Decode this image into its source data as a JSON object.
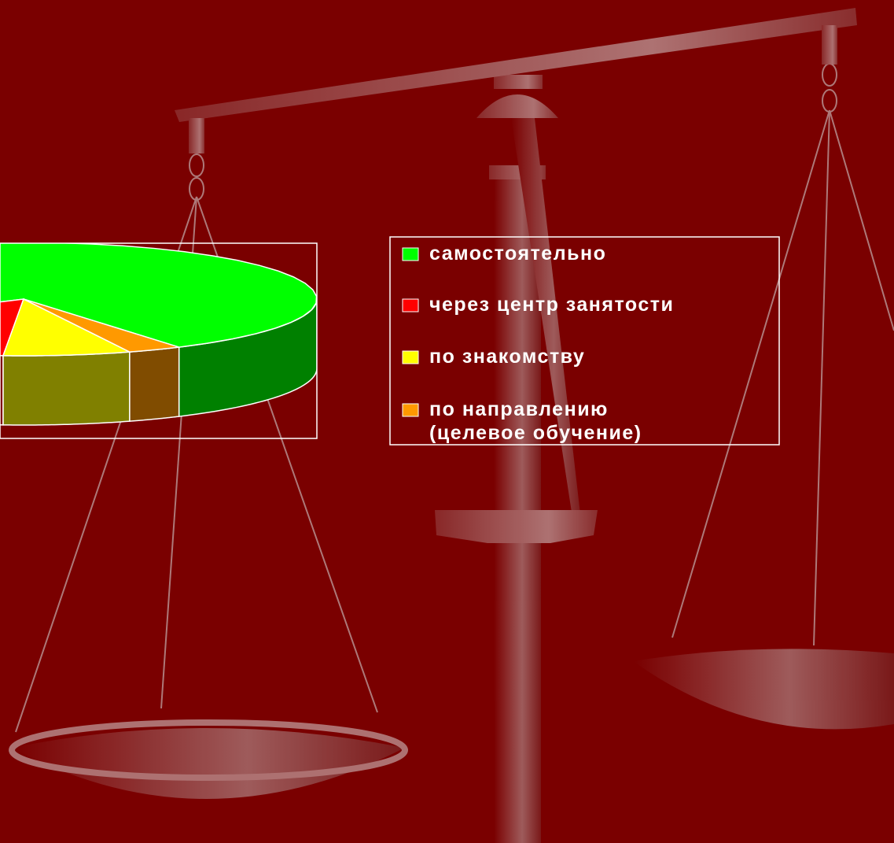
{
  "chart_data": {
    "type": "pie3d",
    "categories": [
      "самостоятельно",
      "через центр занятости",
      "по знакомству",
      "по направлению\n(целевое обучение)"
    ],
    "values": [
      75,
      15,
      7,
      3
    ],
    "colors": [
      "#00ff00",
      "#ff0000",
      "#ffff00",
      "#ff9900"
    ],
    "side_colors": [
      "#008000",
      "#800000",
      "#808000",
      "#804c00"
    ],
    "legend": "right"
  }
}
